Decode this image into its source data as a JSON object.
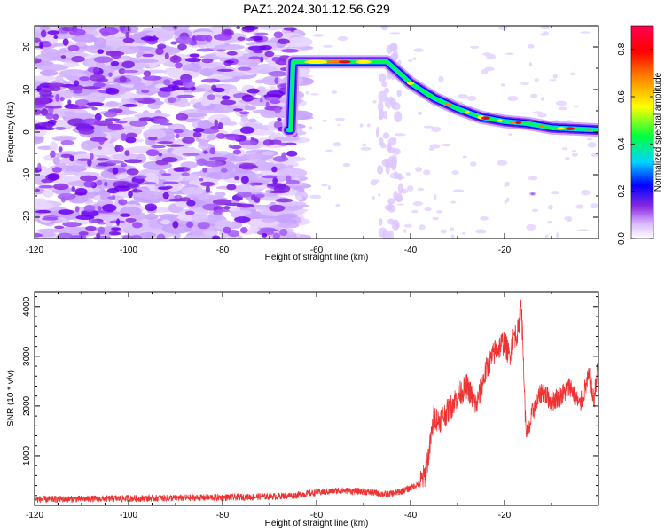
{
  "title": "PAZ1.2024.301.12.56.G29",
  "chart_data": [
    {
      "type": "heatmap",
      "xlabel": "Height of straight line (km)",
      "ylabel": "Frequency (Hz)",
      "xlim": [
        -120,
        0
      ],
      "ylim": [
        -25,
        25
      ],
      "x_ticks": [
        -120,
        -100,
        -80,
        -60,
        -40,
        -20
      ],
      "y_ticks": [
        20,
        10,
        0,
        -10,
        -20
      ],
      "grid": false,
      "colorbar": {
        "label": "Normalized spectral amplitude",
        "range": [
          0,
          0.9
        ],
        "ticks": [
          0.0,
          0.2,
          0.4,
          0.6,
          0.8
        ],
        "colors": [
          "#ffffff",
          "#d9b8ff",
          "#8a2be2",
          "#0000ff",
          "#00d5ff",
          "#00ff40",
          "#ffff00",
          "#ff8000",
          "#ff0000",
          "#ff0050"
        ]
      },
      "ridge": {
        "description_points_km_hz": [
          [
            -65,
            16.5
          ],
          [
            -45,
            16.5
          ],
          [
            -40,
            11.5
          ],
          [
            -35,
            8
          ],
          [
            -30,
            5.5
          ],
          [
            -25,
            3.5
          ],
          [
            -20,
            2.5
          ],
          [
            -15,
            2
          ],
          [
            -10,
            1
          ],
          [
            0,
            0.5
          ]
        ],
        "peak_amplitude": 0.9
      },
      "noise_region_km": [
        -120,
        -65
      ]
    },
    {
      "type": "line",
      "xlabel": "Height of straight line (km)",
      "ylabel": "SNR (10 * v/v)",
      "xlim": [
        -120,
        0
      ],
      "ylim": [
        0,
        4300
      ],
      "x_ticks": [
        -120,
        -100,
        -80,
        -60,
        -40,
        -20
      ],
      "y_ticks": [
        1000,
        2000,
        3000,
        4000
      ],
      "grid": false,
      "series": [
        {
          "color": "#ee3333",
          "x": [
            -120,
            -110,
            -100,
            -90,
            -80,
            -70,
            -65,
            -60,
            -55,
            -50,
            -45,
            -42,
            -40,
            -38,
            -37,
            -36,
            -35,
            -34,
            -32,
            -30,
            -28,
            -26,
            -24,
            -22,
            -20,
            -19,
            -18,
            -17,
            -16.5,
            -16,
            -15.5,
            -15,
            -14,
            -12,
            -10,
            -8,
            -6,
            -4,
            -2,
            -1,
            0
          ],
          "y": [
            120,
            130,
            140,
            150,
            160,
            180,
            200,
            260,
            300,
            280,
            220,
            280,
            350,
            450,
            600,
            1100,
            1800,
            1700,
            1900,
            2200,
            2400,
            2000,
            2700,
            3100,
            3300,
            3000,
            3400,
            3500,
            4200,
            3000,
            1600,
            1400,
            1900,
            2300,
            2100,
            2200,
            2400,
            2000,
            2600,
            2100,
            2900
          ]
        }
      ]
    }
  ]
}
